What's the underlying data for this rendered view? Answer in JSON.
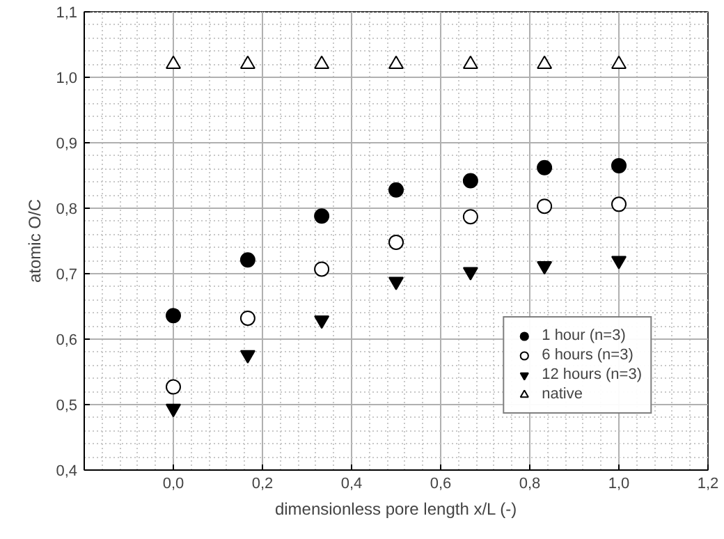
{
  "chart_data": {
    "type": "scatter",
    "xlabel": "dimensionless pore length x/L (-)",
    "ylabel": "atomic O/C",
    "x": [
      0,
      0.167,
      0.333,
      0.5,
      0.667,
      0.833,
      1.0
    ],
    "series": [
      {
        "name": "1 hour (n=3)",
        "color": "#000000",
        "marker": "circle",
        "values": [
          0.636,
          0.721,
          0.788,
          0.828,
          0.842,
          0.862,
          0.865
        ]
      },
      {
        "name": "6 hours (n=3)",
        "color": "#ffffff",
        "marker": "circle",
        "values": [
          0.527,
          0.632,
          0.707,
          0.748,
          0.787,
          0.803,
          0.806
        ]
      },
      {
        "name": "12 hours (n=3)",
        "color": "#000000",
        "marker": "triangle",
        "values": [
          0.494,
          0.576,
          0.629,
          0.688,
          0.703,
          0.712,
          0.72
        ]
      },
      {
        "name": "native",
        "color": "#ffffff",
        "marker": "triangle",
        "values": [
          1.02,
          1.02,
          1.02,
          1.02,
          1.02,
          1.02,
          1.02
        ]
      }
    ],
    "xlim": [
      -0.2,
      1.2
    ],
    "ylim": [
      0.4,
      1.1
    ],
    "xticks": [
      {
        "value": 0,
        "label": "0,0"
      },
      {
        "value": 0.2,
        "label": "0,2"
      },
      {
        "value": 0.4,
        "label": "0,4"
      },
      {
        "value": 0.6,
        "label": "0,6"
      },
      {
        "value": 0.8,
        "label": "0,8"
      },
      {
        "value": 1.0,
        "label": "1,0"
      },
      {
        "value": 1.2,
        "label": "1,2"
      }
    ],
    "yticks": [
      {
        "value": 0.4,
        "label": "0,4"
      },
      {
        "value": 0.5,
        "label": "0,5"
      },
      {
        "value": 0.6,
        "label": "0,6"
      },
      {
        "value": 0.7,
        "label": "0,7"
      },
      {
        "value": 0.8,
        "label": "0,8"
      },
      {
        "value": 0.9,
        "label": "0,9"
      },
      {
        "value": 1.0,
        "label": "1,0"
      },
      {
        "value": 1.1,
        "label": "1,1"
      }
    ],
    "grid": true,
    "legend": "bottom right"
  }
}
